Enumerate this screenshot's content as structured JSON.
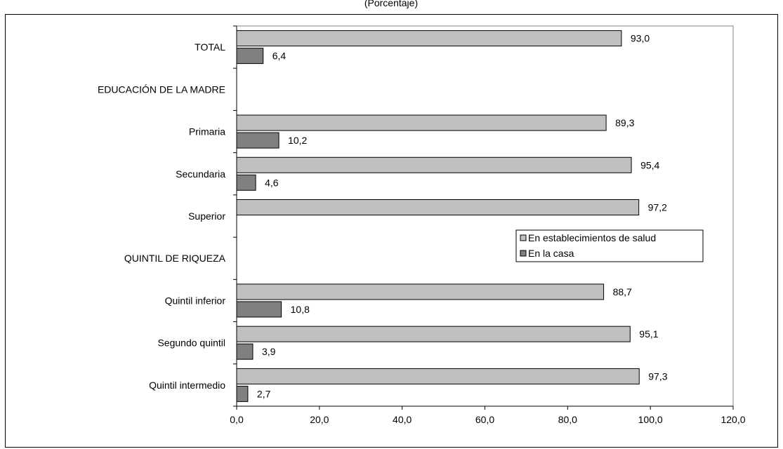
{
  "chart_data": {
    "type": "bar",
    "orientation": "horizontal",
    "title": "(Porcentaje)",
    "xlabel": "",
    "ylabel": "",
    "xlim": [
      0,
      120
    ],
    "ticks": [
      "0,0",
      "20,0",
      "40,0",
      "60,0",
      "80,0",
      "100,0",
      "120,0"
    ],
    "tick_values": [
      0,
      20,
      40,
      60,
      80,
      100,
      120
    ],
    "grid": false,
    "legend_position": "right",
    "categories": [
      "TOTAL",
      "EDUCACIÓN DE LA MADRE",
      "Primaria",
      "Secundaria",
      "Superior",
      "QUINTIL DE RIQUEZA",
      "Quintil inferior",
      "Segundo quintil",
      "Quintil intermedio"
    ],
    "series": [
      {
        "name": "En establecimientos de salud",
        "color": "#c0c0c0",
        "values": [
          93.0,
          null,
          89.3,
          95.4,
          97.2,
          null,
          88.7,
          95.1,
          97.3
        ],
        "labels": [
          "93,0",
          "",
          "89,3",
          "95,4",
          "97,2",
          "",
          "88,7",
          "95,1",
          "97,3"
        ]
      },
      {
        "name": "En la casa",
        "color": "#808080",
        "values": [
          6.4,
          null,
          10.2,
          4.6,
          null,
          null,
          10.8,
          3.9,
          2.7
        ],
        "labels": [
          "6,4",
          "",
          "10,2",
          "4,6",
          "",
          "",
          "10,8",
          "3,9",
          "2,7"
        ]
      }
    ]
  }
}
